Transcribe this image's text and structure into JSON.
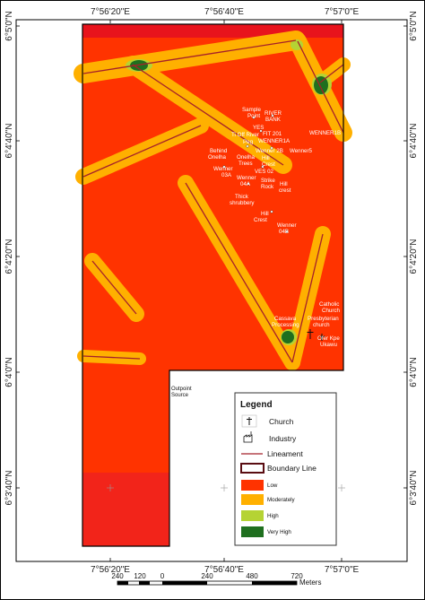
{
  "coords": {
    "top": [
      "7°56'20\"E",
      "7°56'40\"E",
      "7°57'0\"E"
    ],
    "bottom": [
      "7°56'20\"E",
      "7°56'40\"E",
      "7°57'0\"E"
    ],
    "left": [
      "6°5'0\"N",
      "6°4'40\"N",
      "6°4'20\"N",
      "6°4'0\"N",
      "6°3'40\"N"
    ],
    "right": [
      "6°5'0\"N",
      "6°4'40\"N",
      "6°4'20\"N",
      "6°4'0\"N",
      "6°3'40\"N"
    ]
  },
  "colors": {
    "low": "#ff3300",
    "moderately": "#ffb000",
    "high": "#b5d334",
    "very_high": "#1f6f1f",
    "lineament": "#a5212a",
    "top_strip": "#e8131c",
    "bottom_band": "#f2241a"
  },
  "sites": {
    "sample_point": [
      "Sample",
      "Point"
    ],
    "river_bank": [
      "RIVER",
      "BANK"
    ],
    "yes": "YES",
    "ti_off_river": "Ti Off River",
    "fit": "FIT 201",
    "peg": "Peg",
    "wenner1a": "WENNER1A",
    "wenner1b": "WENNER1B",
    "behind_onelha": [
      "Behind",
      "Onelha"
    ],
    "onelha_trees": [
      "Onelha",
      "Trees"
    ],
    "wenner2b": "Wenner 2B",
    "hill_crest_a": [
      "Hill",
      "Crest"
    ],
    "wenner5": "Wenner5",
    "wenner_03a": [
      "Wenner",
      "03A"
    ],
    "ves02": "VES 02",
    "strike_rock": [
      "Strike",
      "Rock"
    ],
    "wenner_04a": [
      "Wenner",
      "04A"
    ],
    "hill_crest_b": [
      "Hill",
      "crest"
    ],
    "thick_shrubbery": [
      "Thick",
      "shrubbery"
    ],
    "hill_crest_c": [
      "Hill",
      "Crest"
    ],
    "wenner_04b": [
      "Wenner",
      "04B"
    ],
    "cassava": [
      "Cassava",
      "Processing"
    ],
    "catholic": [
      "Catholic",
      "Church"
    ],
    "presbyterian": [
      "Presbyterian",
      "church"
    ],
    "ofer_kpe": [
      "Ofer Kpe",
      "Ukawu"
    ],
    "outpoint": [
      "Outpoint",
      "Source"
    ]
  },
  "legend": {
    "title": "Legend",
    "church": "Church",
    "industry": "Industry",
    "lineament": "Lineament",
    "boundary": "Boundary Line",
    "low": "Low",
    "moderately": "Moderately",
    "high": "High",
    "very_high": "Very High"
  },
  "scale": {
    "ticks": [
      "240",
      "120",
      "0",
      "240",
      "480",
      "720"
    ],
    "units": "Meters"
  }
}
